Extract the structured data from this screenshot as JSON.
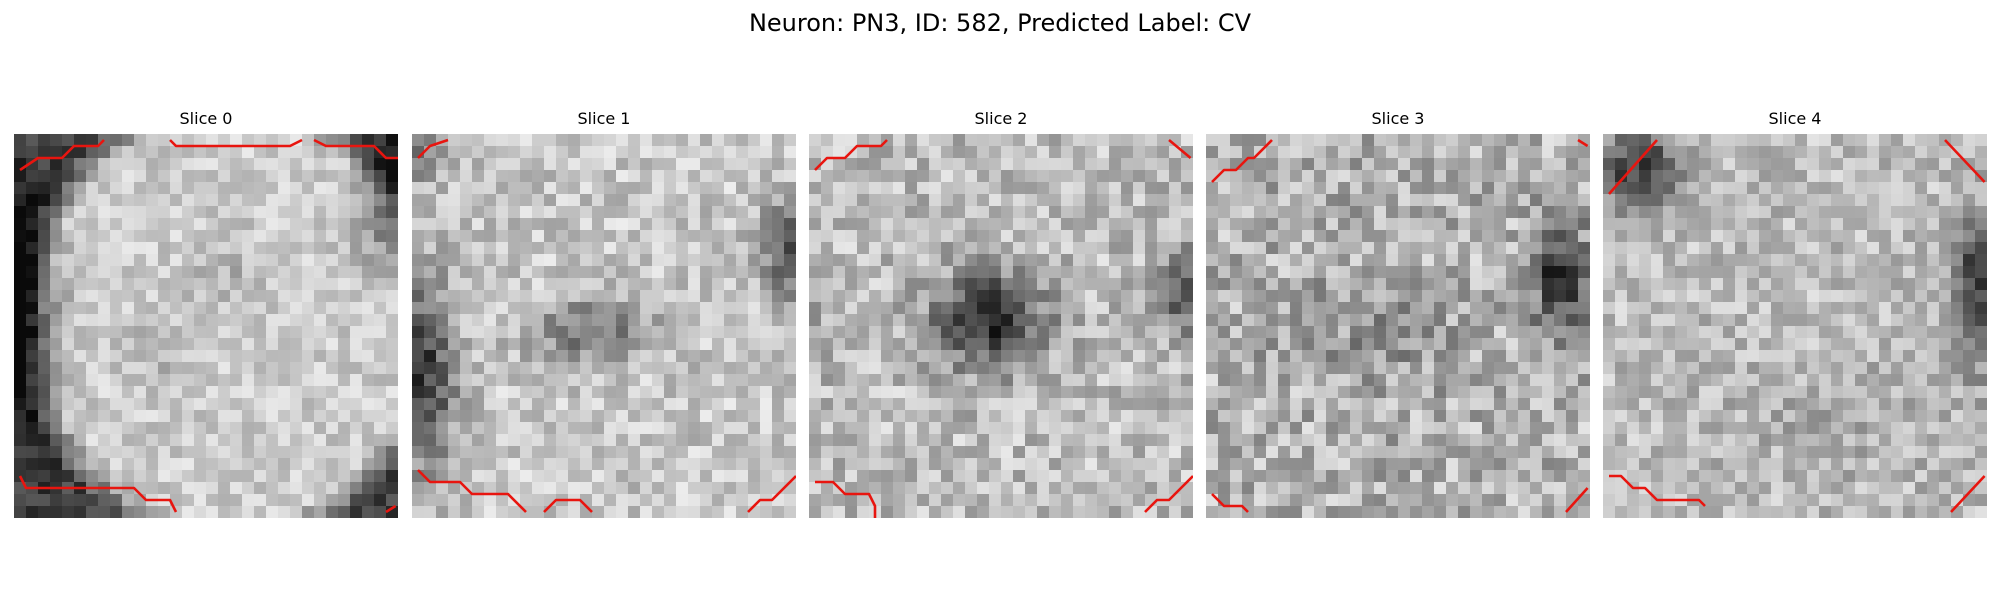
{
  "figure": {
    "title": "Neuron: PN3, ID: 582, Predicted Label: CV",
    "slices": [
      {
        "title": "Slice 0"
      },
      {
        "title": "Slice 1"
      },
      {
        "title": "Slice 2"
      },
      {
        "title": "Slice 3"
      },
      {
        "title": "Slice 4"
      }
    ]
  },
  "colors": {
    "background": "#ffffff",
    "contour": "#e8150f",
    "colormap": "gray"
  }
}
